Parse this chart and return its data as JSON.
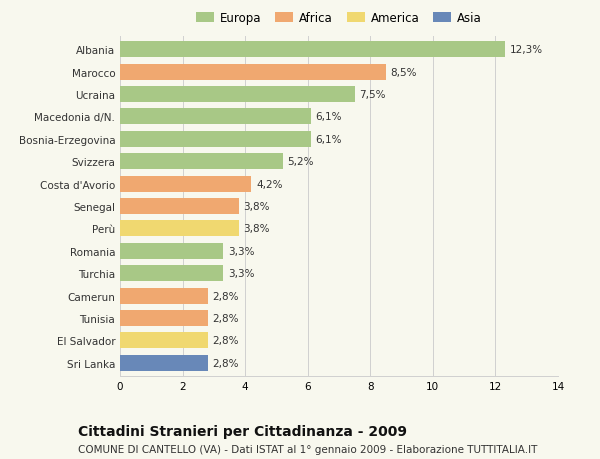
{
  "categories": [
    "Albania",
    "Marocco",
    "Ucraina",
    "Macedonia d/N.",
    "Bosnia-Erzegovina",
    "Svizzera",
    "Costa d'Avorio",
    "Senegal",
    "Perù",
    "Romania",
    "Turchia",
    "Camerun",
    "Tunisia",
    "El Salvador",
    "Sri Lanka"
  ],
  "values": [
    12.3,
    8.5,
    7.5,
    6.1,
    6.1,
    5.2,
    4.2,
    3.8,
    3.8,
    3.3,
    3.3,
    2.8,
    2.8,
    2.8,
    2.8
  ],
  "labels": [
    "12,3%",
    "8,5%",
    "7,5%",
    "6,1%",
    "6,1%",
    "5,2%",
    "4,2%",
    "3,8%",
    "3,8%",
    "3,3%",
    "3,3%",
    "2,8%",
    "2,8%",
    "2,8%",
    "2,8%"
  ],
  "continents": [
    "Europa",
    "Africa",
    "Europa",
    "Europa",
    "Europa",
    "Europa",
    "Africa",
    "Africa",
    "America",
    "Europa",
    "Europa",
    "Africa",
    "Africa",
    "America",
    "Asia"
  ],
  "colors": {
    "Europa": "#a8c886",
    "Africa": "#f0a870",
    "America": "#f0d870",
    "Asia": "#6888b8"
  },
  "xlim": [
    0,
    14
  ],
  "xticks": [
    0,
    2,
    4,
    6,
    8,
    10,
    12,
    14
  ],
  "title": "Cittadini Stranieri per Cittadinanza - 2009",
  "subtitle": "COMUNE DI CANTELLO (VA) - Dati ISTAT al 1° gennaio 2009 - Elaborazione TUTTITALIA.IT",
  "background_color": "#f8f8ee",
  "bar_height": 0.72,
  "grid_color": "#d0d0d0",
  "text_color": "#333333",
  "label_fontsize": 7.5,
  "tick_fontsize": 7.5,
  "title_fontsize": 10,
  "subtitle_fontsize": 7.5,
  "legend_fontsize": 8.5
}
